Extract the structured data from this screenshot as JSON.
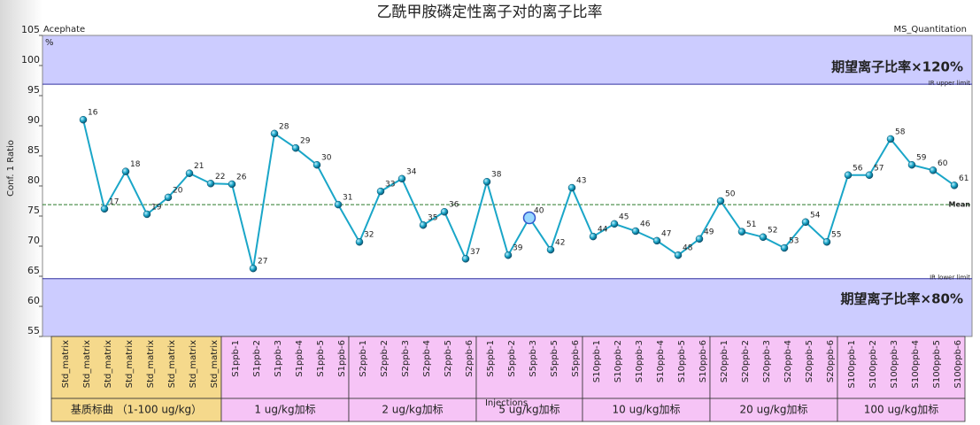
{
  "chart_data": {
    "type": "line",
    "title": "乙酰甲胺磷定性离子对的离子比率",
    "compound": "Acephate",
    "app_name": "MS_Quantitation",
    "unit": "%",
    "y_label": "Conf. 1 Ratio",
    "x_label": "Injections",
    "ylim": [
      55,
      105
    ],
    "yticks": [
      55,
      60,
      65,
      70,
      75,
      80,
      85,
      90,
      95,
      100,
      105
    ],
    "grid": false,
    "categories": [
      "Std_matrix",
      "Std_matrix",
      "Std_matrix",
      "Std_matrix",
      "Std_matrix",
      "Std_matrix",
      "Std_matrix",
      "Std_matrix",
      "S1ppb-1",
      "S1ppb-2",
      "S1ppb-3",
      "S1ppb-4",
      "S1ppb-5",
      "S1ppb-6",
      "S2ppb-1",
      "S2ppb-2",
      "S2ppb-3",
      "S2ppb-4",
      "S2ppb-5",
      "S2ppb-6",
      "S5ppb-1",
      "S5ppb-2",
      "S5ppb-3",
      "S5ppb-5",
      "S5ppb-6",
      "S10ppb-1",
      "S10ppb-2",
      "S10ppb-3",
      "S10ppb-4",
      "S10ppb-5",
      "S10ppb-6",
      "S20ppb-1",
      "S20ppb-2",
      "S20ppb-3",
      "S20ppb-4",
      "S20ppb-5",
      "S20ppb-6",
      "S100ppb-1",
      "S100ppb-2",
      "S100ppb-3",
      "S100ppb-4",
      "S100ppb-5",
      "S100ppb-6"
    ],
    "series": [
      {
        "name": "Conf. 1 Ratio",
        "color": "#1aa6c8",
        "values": [
          null,
          91.0,
          76.2,
          82.4,
          75.3,
          78.1,
          82.1,
          80.4,
          80.3,
          66.3,
          88.7,
          86.3,
          83.5,
          76.9,
          70.7,
          79.1,
          81.2,
          73.5,
          75.7,
          67.9,
          80.7,
          68.5,
          74.7,
          69.4,
          79.7,
          71.6,
          73.7,
          72.5,
          70.9,
          68.5,
          71.2,
          77.5,
          72.4,
          71.5,
          69.7,
          74.0,
          70.7,
          81.8,
          81.8,
          87.8,
          83.5,
          82.6,
          80.1
        ],
        "point_labels": [
          null,
          "16",
          "17",
          "18",
          "19",
          "20",
          "21",
          "22",
          "26",
          "27",
          "28",
          "29",
          "30",
          "31",
          "32",
          "33",
          "34",
          "35",
          "36",
          "37",
          "38",
          "39",
          "40",
          "42",
          "43",
          "44",
          "45",
          "46",
          "47",
          "48",
          "49",
          "50",
          "51",
          "52",
          "53",
          "54",
          "55",
          "56",
          "57",
          "58",
          "59",
          "60",
          "61"
        ]
      }
    ],
    "highlight_index": 22,
    "reference_lines": [
      {
        "label": "IR upper limit",
        "value": 96.9
      },
      {
        "label": "Mean",
        "value": 76.9
      },
      {
        "label": "IR lower limit",
        "value": 64.6
      }
    ],
    "band_color": "#ccccff",
    "annotations": [
      "期望离子比率×120%",
      "期望离子比率×80%"
    ],
    "groups": [
      {
        "label": "基质标曲 （1-100 ug/kg）",
        "count": 8,
        "color": "#f5d98c"
      },
      {
        "label": "1 ug/kg加标",
        "count": 6,
        "color": "#f6c4f6"
      },
      {
        "label": "2 ug/kg加标",
        "count": 6,
        "color": "#f6c4f6"
      },
      {
        "label": "5 ug/kg加标",
        "count": 5,
        "color": "#f6c4f6"
      },
      {
        "label": "10 ug/kg加标",
        "count": 6,
        "color": "#f6c4f6"
      },
      {
        "label": "20 ug/kg加标",
        "count": 6,
        "color": "#f6c4f6"
      },
      {
        "label": "100 ug/kg加标",
        "count": 6,
        "color": "#f6c4f6"
      }
    ]
  }
}
